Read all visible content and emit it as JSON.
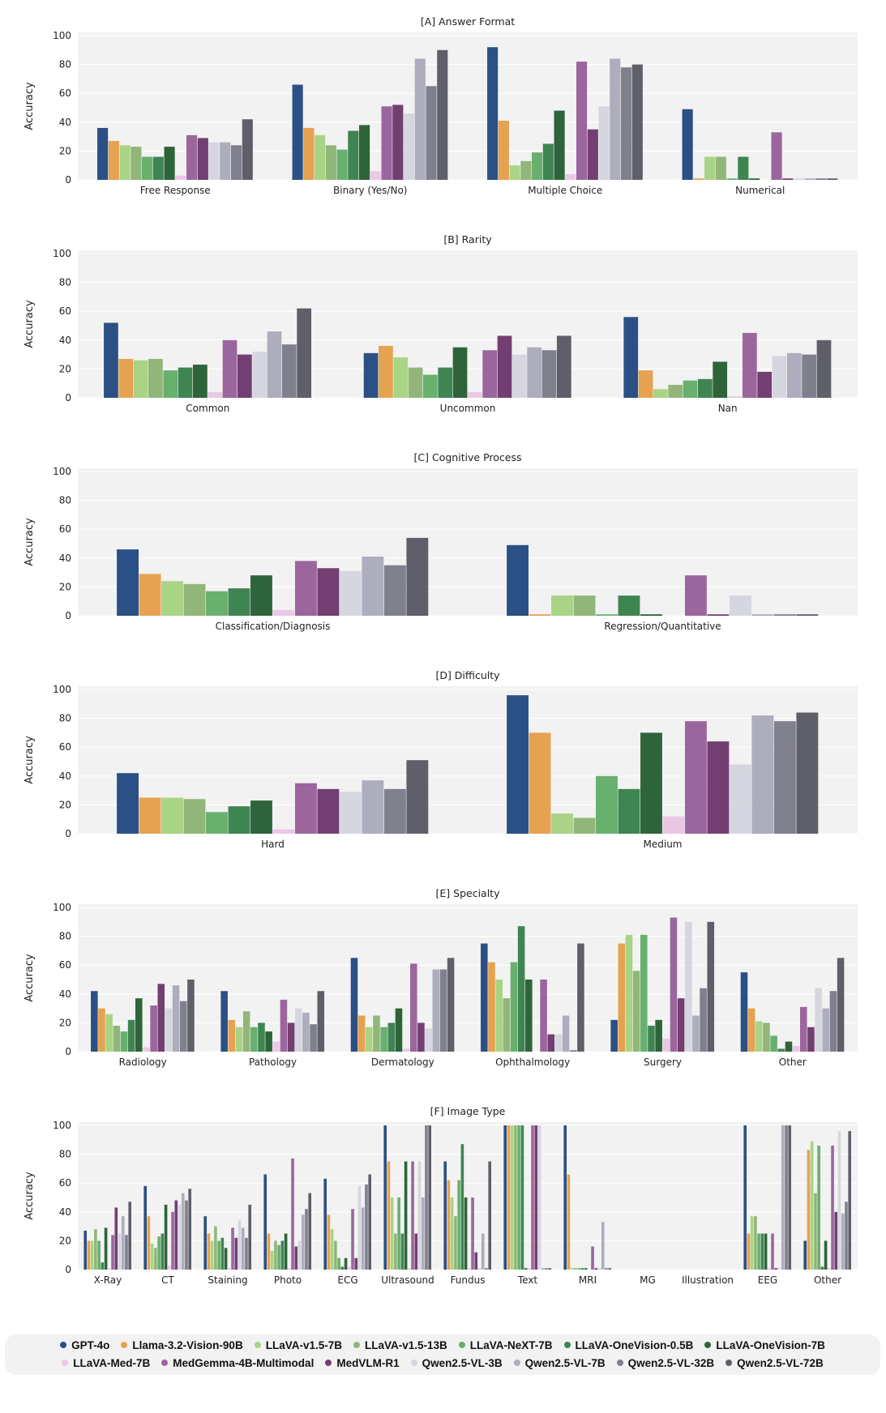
{
  "colors": [
    "#2b5085",
    "#e5a250",
    "#a9d485",
    "#92b679",
    "#68b06e",
    "#3f8552",
    "#2e6439",
    "#ebc7e6",
    "#9b669e",
    "#733f72",
    "#d6d6e0",
    "#adadbd",
    "#7f7f8e",
    "#5f5f6a"
  ],
  "chart_data": [
    {
      "type": "bar",
      "title": "[A] Answer Format",
      "ylabel": "Accuracy",
      "ylim": [
        0,
        100
      ],
      "yticks": [
        "0",
        "20",
        "40",
        "60",
        "80",
        "100"
      ],
      "categories": [
        "Free Response",
        "Binary (Yes/No)",
        "Multiple Choice",
        "Numerical"
      ],
      "series": [
        {
          "name": "GPT-4o",
          "values": [
            36,
            66,
            92,
            49
          ]
        },
        {
          "name": "Llama-3.2-Vision-90B",
          "values": [
            27,
            36,
            41,
            1
          ]
        },
        {
          "name": "LLaVA-v1.5-7B",
          "values": [
            24,
            31,
            10,
            16
          ]
        },
        {
          "name": "LLaVA-v1.5-13B",
          "values": [
            23,
            24,
            13,
            16
          ]
        },
        {
          "name": "LLaVA-NeXT-7B",
          "values": [
            16,
            21,
            19,
            1
          ]
        },
        {
          "name": "LLaVA-OneVision-0.5B",
          "values": [
            16,
            34,
            25,
            16
          ]
        },
        {
          "name": "LLaVA-OneVision-7B",
          "values": [
            23,
            38,
            48,
            1
          ]
        },
        {
          "name": "LLaVA-Med-7B",
          "values": [
            3,
            6,
            4,
            0
          ]
        },
        {
          "name": "MedGemma-4B-Multimodal",
          "values": [
            31,
            51,
            82,
            33
          ]
        },
        {
          "name": "MedVLM-R1",
          "values": [
            29,
            52,
            35,
            1
          ]
        },
        {
          "name": "Qwen2.5-VL-3B",
          "values": [
            26,
            46,
            51,
            1
          ]
        },
        {
          "name": "Qwen2.5-VL-7B",
          "values": [
            26,
            84,
            84,
            1
          ]
        },
        {
          "name": "Qwen2.5-VL-32B",
          "values": [
            24,
            65,
            78,
            1
          ]
        },
        {
          "name": "Qwen2.5-VL-72B",
          "values": [
            42,
            90,
            80,
            1
          ]
        }
      ]
    },
    {
      "type": "bar",
      "title": "[B] Rarity",
      "ylabel": "Accuracy",
      "ylim": [
        0,
        100
      ],
      "yticks": [
        "0",
        "20",
        "40",
        "60",
        "80",
        "100"
      ],
      "categories": [
        "Common",
        "Uncommon",
        "Nan"
      ],
      "series": [
        {
          "name": "GPT-4o",
          "values": [
            52,
            31,
            56
          ]
        },
        {
          "name": "Llama-3.2-Vision-90B",
          "values": [
            27,
            36,
            19
          ]
        },
        {
          "name": "LLaVA-v1.5-7B",
          "values": [
            26,
            28,
            6
          ]
        },
        {
          "name": "LLaVA-v1.5-13B",
          "values": [
            27,
            21,
            9
          ]
        },
        {
          "name": "LLaVA-NeXT-7B",
          "values": [
            19,
            16,
            12
          ]
        },
        {
          "name": "LLaVA-OneVision-0.5B",
          "values": [
            21,
            21,
            13
          ]
        },
        {
          "name": "LLaVA-OneVision-7B",
          "values": [
            23,
            35,
            25
          ]
        },
        {
          "name": "LLaVA-Med-7B",
          "values": [
            4,
            4,
            1
          ]
        },
        {
          "name": "MedGemma-4B-Multimodal",
          "values": [
            40,
            33,
            45
          ]
        },
        {
          "name": "MedVLM-R1",
          "values": [
            30,
            43,
            18
          ]
        },
        {
          "name": "Qwen2.5-VL-3B",
          "values": [
            32,
            30,
            29
          ]
        },
        {
          "name": "Qwen2.5-VL-7B",
          "values": [
            46,
            35,
            31
          ]
        },
        {
          "name": "Qwen2.5-VL-32B",
          "values": [
            37,
            33,
            30
          ]
        },
        {
          "name": "Qwen2.5-VL-72B",
          "values": [
            62,
            43,
            40
          ]
        }
      ]
    },
    {
      "type": "bar",
      "title": "[C] Cognitive Process",
      "ylabel": "Accuracy",
      "ylim": [
        0,
        100
      ],
      "yticks": [
        "0",
        "20",
        "40",
        "60",
        "80",
        "100"
      ],
      "categories": [
        "Classification/Diagnosis",
        "Regression/Quantitative"
      ],
      "series": [
        {
          "name": "GPT-4o",
          "values": [
            46,
            49
          ]
        },
        {
          "name": "Llama-3.2-Vision-90B",
          "values": [
            29,
            1
          ]
        },
        {
          "name": "LLaVA-v1.5-7B",
          "values": [
            24,
            14
          ]
        },
        {
          "name": "LLaVA-v1.5-13B",
          "values": [
            22,
            14
          ]
        },
        {
          "name": "LLaVA-NeXT-7B",
          "values": [
            17,
            1
          ]
        },
        {
          "name": "LLaVA-OneVision-0.5B",
          "values": [
            19,
            14
          ]
        },
        {
          "name": "LLaVA-OneVision-7B",
          "values": [
            28,
            1
          ]
        },
        {
          "name": "LLaVA-Med-7B",
          "values": [
            4,
            0
          ]
        },
        {
          "name": "MedGemma-4B-Multimodal",
          "values": [
            38,
            28
          ]
        },
        {
          "name": "MedVLM-R1",
          "values": [
            33,
            1
          ]
        },
        {
          "name": "Qwen2.5-VL-3B",
          "values": [
            31,
            14
          ]
        },
        {
          "name": "Qwen2.5-VL-7B",
          "values": [
            41,
            1
          ]
        },
        {
          "name": "Qwen2.5-VL-32B",
          "values": [
            35,
            1
          ]
        },
        {
          "name": "Qwen2.5-VL-72B",
          "values": [
            54,
            1
          ]
        }
      ]
    },
    {
      "type": "bar",
      "title": "[D] Difficulty",
      "ylabel": "Accuracy",
      "ylim": [
        0,
        100
      ],
      "yticks": [
        "0",
        "20",
        "40",
        "60",
        "80",
        "100"
      ],
      "categories": [
        "Hard",
        "Medium"
      ],
      "series": [
        {
          "name": "GPT-4o",
          "values": [
            42,
            96
          ]
        },
        {
          "name": "Llama-3.2-Vision-90B",
          "values": [
            25,
            70
          ]
        },
        {
          "name": "LLaVA-v1.5-7B",
          "values": [
            25,
            14
          ]
        },
        {
          "name": "LLaVA-v1.5-13B",
          "values": [
            24,
            11
          ]
        },
        {
          "name": "LLaVA-NeXT-7B",
          "values": [
            15,
            40
          ]
        },
        {
          "name": "LLaVA-OneVision-0.5B",
          "values": [
            19,
            31
          ]
        },
        {
          "name": "LLaVA-OneVision-7B",
          "values": [
            23,
            70
          ]
        },
        {
          "name": "LLaVA-Med-7B",
          "values": [
            3,
            12
          ]
        },
        {
          "name": "MedGemma-4B-Multimodal",
          "values": [
            35,
            78
          ]
        },
        {
          "name": "MedVLM-R1",
          "values": [
            31,
            64
          ]
        },
        {
          "name": "Qwen2.5-VL-3B",
          "values": [
            29,
            48
          ]
        },
        {
          "name": "Qwen2.5-VL-7B",
          "values": [
            37,
            82
          ]
        },
        {
          "name": "Qwen2.5-VL-32B",
          "values": [
            31,
            78
          ]
        },
        {
          "name": "Qwen2.5-VL-72B",
          "values": [
            51,
            84
          ]
        }
      ]
    },
    {
      "type": "bar",
      "title": "[E] Specialty",
      "ylabel": "Accuracy",
      "ylim": [
        0,
        100
      ],
      "yticks": [
        "0",
        "20",
        "40",
        "60",
        "80",
        "100"
      ],
      "categories": [
        "Radiology",
        "Pathology",
        "Dermatology",
        "Ophthalmology",
        "Surgery",
        "Other"
      ],
      "series": [
        {
          "name": "GPT-4o",
          "values": [
            42,
            42,
            65,
            75,
            22,
            55
          ]
        },
        {
          "name": "Llama-3.2-Vision-90B",
          "values": [
            30,
            22,
            25,
            62,
            75,
            30
          ]
        },
        {
          "name": "LLaVA-v1.5-7B",
          "values": [
            26,
            17,
            17,
            50,
            81,
            21
          ]
        },
        {
          "name": "LLaVA-v1.5-13B",
          "values": [
            18,
            28,
            25,
            37,
            56,
            20
          ]
        },
        {
          "name": "LLaVA-NeXT-7B",
          "values": [
            14,
            17,
            17,
            62,
            81,
            11
          ]
        },
        {
          "name": "LLaVA-OneVision-0.5B",
          "values": [
            22,
            20,
            20,
            87,
            18,
            2
          ]
        },
        {
          "name": "LLaVA-OneVision-7B",
          "values": [
            37,
            14,
            30,
            50,
            22,
            7
          ]
        },
        {
          "name": "LLaVA-Med-7B",
          "values": [
            3,
            7,
            2,
            0,
            9,
            4
          ]
        },
        {
          "name": "MedGemma-4B-Multimodal",
          "values": [
            32,
            36,
            61,
            50,
            93,
            31
          ]
        },
        {
          "name": "MedVLM-R1",
          "values": [
            47,
            20,
            20,
            12,
            37,
            17
          ]
        },
        {
          "name": "Qwen2.5-VL-3B",
          "values": [
            30,
            30,
            16,
            12,
            90,
            44
          ]
        },
        {
          "name": "Qwen2.5-VL-7B",
          "values": [
            46,
            27,
            57,
            25,
            25,
            30
          ]
        },
        {
          "name": "Qwen2.5-VL-32B",
          "values": [
            35,
            19,
            57,
            1,
            44,
            42
          ]
        },
        {
          "name": "Qwen2.5-VL-72B",
          "values": [
            50,
            42,
            65,
            75,
            90,
            65
          ]
        }
      ]
    },
    {
      "type": "bar",
      "title": "[F] Image Type",
      "ylabel": "Accuracy",
      "ylim": [
        0,
        100
      ],
      "yticks": [
        "0",
        "20",
        "40",
        "60",
        "80",
        "100"
      ],
      "categories": [
        "X-Ray",
        "CT",
        "Staining",
        "Photo",
        "ECG",
        "Ultrasound",
        "Fundus",
        "Text",
        "MRI",
        "MG",
        "Illustration",
        "EEG",
        "Other"
      ],
      "series": [
        {
          "name": "GPT-4o",
          "values": [
            27,
            58,
            37,
            66,
            63,
            100,
            75,
            100,
            100,
            0,
            0,
            100,
            20
          ]
        },
        {
          "name": "Llama-3.2-Vision-90B",
          "values": [
            20,
            37,
            25,
            25,
            38,
            75,
            62,
            100,
            66,
            0,
            0,
            25,
            83
          ]
        },
        {
          "name": "LLaVA-v1.5-7B",
          "values": [
            20,
            18,
            20,
            13,
            28,
            50,
            50,
            100,
            1,
            0,
            0,
            37,
            89
          ]
        },
        {
          "name": "LLaVA-v1.5-13B",
          "values": [
            28,
            15,
            30,
            20,
            20,
            25,
            37,
            100,
            1,
            0,
            0,
            37,
            53
          ]
        },
        {
          "name": "LLaVA-NeXT-7B",
          "values": [
            20,
            23,
            20,
            17,
            8,
            50,
            62,
            100,
            1,
            0,
            0,
            25,
            86
          ]
        },
        {
          "name": "LLaVA-OneVision-0.5B",
          "values": [
            5,
            25,
            22,
            20,
            2,
            25,
            87,
            100,
            1,
            0,
            0,
            25,
            2
          ]
        },
        {
          "name": "LLaVA-OneVision-7B",
          "values": [
            29,
            45,
            15,
            25,
            8,
            75,
            50,
            1,
            1,
            0,
            0,
            25,
            20
          ]
        },
        {
          "name": "LLaVA-Med-7B",
          "values": [
            1,
            3,
            1,
            1,
            2,
            1,
            1,
            1,
            0,
            0,
            0,
            1,
            1
          ]
        },
        {
          "name": "MedGemma-4B-Multimodal",
          "values": [
            24,
            40,
            29,
            77,
            42,
            75,
            50,
            100,
            16,
            0,
            0,
            25,
            86
          ]
        },
        {
          "name": "MedVLM-R1",
          "values": [
            43,
            48,
            22,
            16,
            8,
            25,
            12,
            100,
            1,
            0,
            0,
            1,
            40
          ]
        },
        {
          "name": "Qwen2.5-VL-3B",
          "values": [
            25,
            45,
            34,
            20,
            58,
            75,
            1,
            100,
            1,
            0,
            0,
            1,
            96
          ]
        },
        {
          "name": "Qwen2.5-VL-7B",
          "values": [
            37,
            53,
            29,
            38,
            43,
            50,
            25,
            1,
            33,
            0,
            0,
            100,
            39
          ]
        },
        {
          "name": "Qwen2.5-VL-32B",
          "values": [
            24,
            48,
            22,
            42,
            59,
            100,
            1,
            1,
            1,
            0,
            0,
            100,
            47
          ]
        },
        {
          "name": "Qwen2.5-VL-72B",
          "values": [
            47,
            56,
            45,
            53,
            66,
            100,
            75,
            1,
            1,
            0,
            0,
            100,
            96
          ]
        }
      ]
    }
  ]
}
